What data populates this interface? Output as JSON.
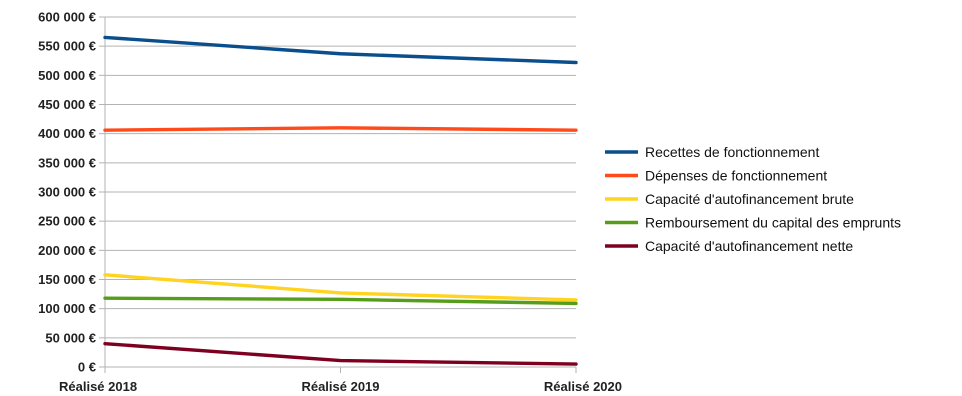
{
  "chart_data": {
    "type": "line",
    "categories": [
      "Réalisé 2018",
      "Réalisé 2019",
      "Réalisé 2020"
    ],
    "y_tick_labels": [
      "0 €",
      "50 000 €",
      "100 000 €",
      "150 000 €",
      "200 000 €",
      "250 000 €",
      "300 000 €",
      "350 000 €",
      "400 000 €",
      "450 000 €",
      "500 000 €",
      "550 000 €",
      "600 000 €"
    ],
    "y_ticks": [
      0,
      50000,
      100000,
      150000,
      200000,
      250000,
      300000,
      350000,
      400000,
      450000,
      500000,
      550000,
      600000
    ],
    "ylim": [
      0,
      600000
    ],
    "grid": "horizontal",
    "legend_position": "right",
    "series": [
      {
        "name": "Recettes de fonctionnement",
        "color": "#0a4f8c",
        "values": [
          565000,
          537000,
          522000
        ]
      },
      {
        "name": "Dépenses de fonctionnement",
        "color": "#ff4a1c",
        "values": [
          406000,
          410000,
          406000
        ]
      },
      {
        "name": "Capacité d'autofinancement brute",
        "color": "#ffd320",
        "values": [
          158000,
          127000,
          115000
        ]
      },
      {
        "name": "Remboursement du capital des emprunts",
        "color": "#579d1c",
        "values": [
          118000,
          116000,
          109000
        ]
      },
      {
        "name": "Capacité d'autofinancement nette",
        "color": "#7e0021",
        "values": [
          40000,
          11000,
          5000
        ]
      }
    ]
  }
}
